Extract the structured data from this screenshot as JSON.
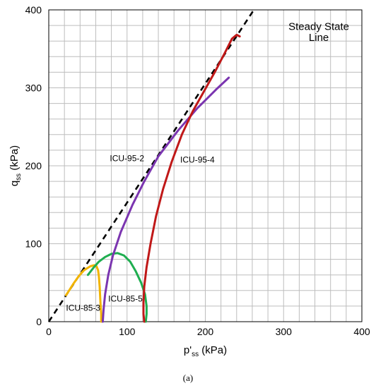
{
  "chart_data": {
    "type": "line",
    "caption": "(a)",
    "xlabel_main": "p'",
    "xlabel_sub": "ss",
    "xlabel_unit": " (kPa)",
    "ylabel_main": "q",
    "ylabel_sub": "ss",
    "ylabel_unit": " (kPa)",
    "xlim": [
      0,
      400
    ],
    "ylim": [
      0,
      400
    ],
    "xticks": [
      0,
      100,
      200,
      300,
      400
    ],
    "yticks": [
      0,
      100,
      200,
      300,
      400
    ],
    "grid": true,
    "grid_step": 20,
    "steady_state_line": {
      "label_lines": [
        "Steady State",
        "Line"
      ],
      "points": [
        [
          0,
          0
        ],
        [
          262,
          400
        ]
      ],
      "style": "dashed",
      "color": "#000000"
    },
    "series": [
      {
        "name": "ICU-85-3",
        "color": "#f2b400",
        "points": [
          [
            67,
            0
          ],
          [
            67,
            10
          ],
          [
            66,
            25
          ],
          [
            65,
            45
          ],
          [
            64,
            58
          ],
          [
            63,
            66
          ],
          [
            61,
            71
          ],
          [
            58,
            72.5
          ],
          [
            53,
            71
          ],
          [
            45,
            66
          ],
          [
            38,
            58
          ],
          [
            31,
            48
          ],
          [
            26,
            40
          ],
          [
            22,
            34
          ]
        ]
      },
      {
        "name": "ICU-85-5",
        "color": "#1fae50",
        "points": [
          [
            124,
            0
          ],
          [
            125,
            10
          ],
          [
            125,
            20
          ],
          [
            123,
            35
          ],
          [
            118,
            50
          ],
          [
            111,
            65
          ],
          [
            104,
            77
          ],
          [
            96,
            85
          ],
          [
            88,
            88
          ],
          [
            80,
            87
          ],
          [
            72,
            83
          ],
          [
            64,
            77
          ],
          [
            57,
            69
          ],
          [
            50,
            60
          ]
        ]
      },
      {
        "name": "ICU-95-2",
        "color": "#7b35b0",
        "points": [
          [
            69,
            0
          ],
          [
            70,
            15
          ],
          [
            72,
            35
          ],
          [
            76,
            60
          ],
          [
            82,
            85
          ],
          [
            92,
            115
          ],
          [
            107,
            150
          ],
          [
            122,
            180
          ],
          [
            140,
            212
          ],
          [
            165,
            245
          ],
          [
            190,
            274
          ],
          [
            215,
            299
          ],
          [
            230,
            313
          ]
        ]
      },
      {
        "name": "ICU-95-4",
        "color": "#c01818",
        "points": [
          [
            122,
            0
          ],
          [
            121,
            10
          ],
          [
            121,
            25
          ],
          [
            122,
            45
          ],
          [
            125,
            70
          ],
          [
            130,
            100
          ],
          [
            137,
            135
          ],
          [
            146,
            170
          ],
          [
            157,
            205
          ],
          [
            170,
            240
          ],
          [
            184,
            270
          ],
          [
            198,
            295
          ],
          [
            212,
            320
          ],
          [
            225,
            345
          ],
          [
            234,
            363
          ],
          [
            240,
            368
          ],
          [
            244,
            366
          ]
        ]
      }
    ],
    "annotations": [
      {
        "text": "ICU-95-2",
        "x": 78,
        "y": 206
      },
      {
        "text": "ICU-95-4",
        "x": 168,
        "y": 204
      },
      {
        "text": "ICU-85-5",
        "x": 76,
        "y": 26
      },
      {
        "text": "ICU-85-3",
        "x": 22,
        "y": 14
      }
    ]
  }
}
